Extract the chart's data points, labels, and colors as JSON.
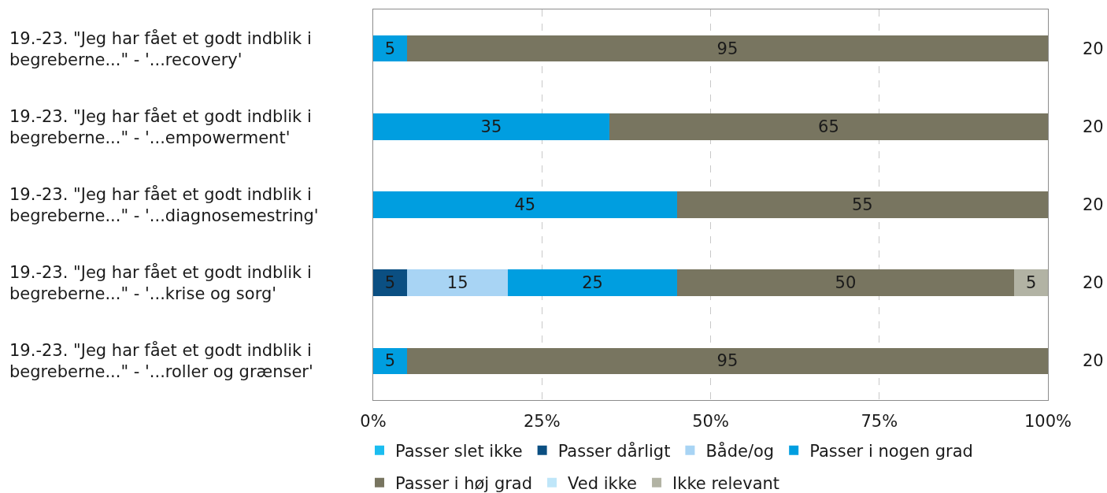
{
  "chart_data": {
    "type": "bar",
    "orientation": "horizontal",
    "stacked": true,
    "categories": [
      "19.-23. \"Jeg har fået et godt indblik i begreberne...\" - '...recovery'",
      "19.-23. \"Jeg har fået et godt indblik i begreberne...\" - '...empowerment'",
      "19.-23. \"Jeg har fået et godt indblik i begreberne...\" - '...diagnosemestring'",
      "19.-23. \"Jeg har fået et godt indblik i begreberne...\" - '...krise og sorg'",
      "19.-23. \"Jeg har fået et godt indblik i begreberne...\" - '...roller og grænser'"
    ],
    "series": [
      {
        "name": "Passer slet ikke",
        "color": "#1bbdf0",
        "values": [
          null,
          null,
          null,
          null,
          null
        ]
      },
      {
        "name": "Passer dårligt",
        "color": "#0b4f82",
        "values": [
          null,
          null,
          null,
          5,
          null
        ]
      },
      {
        "name": "Både/og",
        "color": "#a8d4f4",
        "values": [
          null,
          null,
          null,
          15,
          null
        ]
      },
      {
        "name": "Passer i nogen grad",
        "color": "#009ee0",
        "values": [
          5,
          35,
          45,
          25,
          5
        ]
      },
      {
        "name": "Passer i høj grad",
        "color": "#787560",
        "values": [
          95,
          65,
          55,
          50,
          95
        ]
      },
      {
        "name": "Ved ikke",
        "color": "#bfe6f9",
        "values": [
          null,
          null,
          null,
          null,
          null
        ]
      },
      {
        "name": "Ikke relevant",
        "color": "#b2b3a4",
        "values": [
          null,
          null,
          null,
          5,
          null
        ]
      }
    ],
    "xlim": [
      0,
      100
    ],
    "xticks": [
      {
        "value": 0,
        "label": "0%"
      },
      {
        "value": 25,
        "label": "25%"
      },
      {
        "value": 50,
        "label": "50%"
      },
      {
        "value": 75,
        "label": "75%"
      },
      {
        "value": 100,
        "label": "100%"
      }
    ],
    "grid": "x",
    "legend": "bottom",
    "data_labels": true,
    "annotations": [
      "20",
      "20",
      "20",
      "20",
      "20"
    ]
  }
}
